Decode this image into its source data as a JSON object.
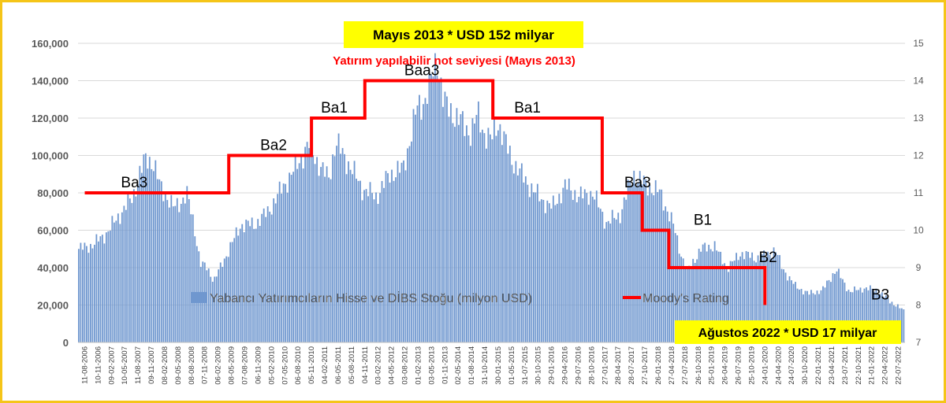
{
  "chart_data": {
    "type": "bar",
    "y_axis_left": {
      "ylim": [
        0,
        160000
      ],
      "ticks": [
        "0",
        "20,000",
        "40,000",
        "60,000",
        "80,000",
        "100,000",
        "120,000",
        "140,000",
        "160,000"
      ]
    },
    "y_axis_right": {
      "ylim": [
        7,
        15
      ],
      "ticks": [
        "7",
        "8",
        "9",
        "10",
        "11",
        "12",
        "13",
        "14",
        "15"
      ]
    },
    "x_tick_labels": [
      "11-08-2006",
      "10-11-2006",
      "09-02-2007",
      "10-05-2007",
      "11-08-2007",
      "09-11-2007",
      "08-02-2008",
      "09-05-2008",
      "08-08-2008",
      "07-11-2008",
      "06-02-2009",
      "08-05-2009",
      "07-08-2009",
      "06-11-2009",
      "05-02-2010",
      "07-05-2010",
      "06-08-2010",
      "05-11-2010",
      "04-02-2011",
      "06-05-2011",
      "05-08-2011",
      "04-11-2011",
      "03-02-2012",
      "04-05-2012",
      "03-08-2012",
      "01-02-2013",
      "03-05-2013",
      "01-11-2013",
      "02-05-2014",
      "01-08-2014",
      "31-10-2014",
      "30-01-2015",
      "01-05-2015",
      "31-07-2015",
      "30-10-2015",
      "29-01-2016",
      "29-04-2016",
      "29-07-2016",
      "28-10-2016",
      "27-01-2017",
      "28-04-2017",
      "28-07-2017",
      "27-10-2017",
      "26-01-2018",
      "27-04-2018",
      "27-07-2018",
      "26-10-2018",
      "25-01-2019",
      "26-04-2019",
      "26-07-2019",
      "25-10-2019",
      "24-01-2020",
      "24-04-2020",
      "24-07-2020",
      "30-10-2020",
      "22-01-2021",
      "23-04-2021",
      "23-07-2021",
      "22-10-2021",
      "21-01-2022",
      "22-04-2022",
      "22-07-2022"
    ],
    "series": [
      {
        "name": "Yabancı Yatırımcıların Hisse ve DİBS Stoğu (milyon USD)",
        "kind": "bar",
        "color": "#6f97cf",
        "anchors": [
          [
            0,
            50000
          ],
          [
            1,
            52000
          ],
          [
            2,
            58000
          ],
          [
            3,
            68000
          ],
          [
            4,
            78000
          ],
          [
            4.5,
            90000
          ],
          [
            5,
            99000
          ],
          [
            5.5,
            96000
          ],
          [
            6,
            84000
          ],
          [
            7,
            72000
          ],
          [
            7.5,
            75000
          ],
          [
            8,
            79000
          ],
          [
            8.5,
            64000
          ],
          [
            9,
            42000
          ],
          [
            9.5,
            40000
          ],
          [
            10,
            33000
          ],
          [
            11,
            48000
          ],
          [
            12,
            63000
          ],
          [
            13,
            63000
          ],
          [
            14,
            70000
          ],
          [
            15,
            82000
          ],
          [
            16,
            93000
          ],
          [
            17,
            106000
          ],
          [
            18,
            92000
          ],
          [
            18.5,
            88000
          ],
          [
            19,
            107000
          ],
          [
            20,
            95000
          ],
          [
            21,
            82000
          ],
          [
            22,
            78000
          ],
          [
            23,
            90000
          ],
          [
            24,
            93000
          ],
          [
            25,
            125000
          ],
          [
            25.6,
            130000
          ],
          [
            26,
            139000
          ],
          [
            26.5,
            152000
          ],
          [
            27,
            128000
          ],
          [
            28,
            120000
          ],
          [
            29,
            112000
          ],
          [
            29.5,
            122000
          ],
          [
            30,
            112000
          ],
          [
            30.5,
            108000
          ],
          [
            31,
            118000
          ],
          [
            32,
            98000
          ],
          [
            33,
            87000
          ],
          [
            34,
            78000
          ],
          [
            35,
            72000
          ],
          [
            36,
            84000
          ],
          [
            37,
            78000
          ],
          [
            38,
            80000
          ],
          [
            39,
            64000
          ],
          [
            40,
            68000
          ],
          [
            41,
            90000
          ],
          [
            42,
            84000
          ],
          [
            43,
            80000
          ],
          [
            44,
            62000
          ],
          [
            44.5,
            48000
          ],
          [
            45,
            38000
          ],
          [
            46,
            50000
          ],
          [
            47,
            52000
          ],
          [
            47.5,
            45000
          ],
          [
            48,
            40000
          ],
          [
            49,
            48000
          ],
          [
            50,
            45000
          ],
          [
            51,
            47000
          ],
          [
            51.5,
            50000
          ],
          [
            52,
            40000
          ],
          [
            53,
            30000
          ],
          [
            54,
            26000
          ],
          [
            55,
            28000
          ],
          [
            56,
            39000
          ],
          [
            57,
            27000
          ],
          [
            58,
            29000
          ],
          [
            59,
            28000
          ],
          [
            60,
            22000
          ],
          [
            61,
            17000
          ]
        ]
      },
      {
        "name": "Moody's Rating",
        "kind": "step",
        "color": "#ff0000",
        "steps": [
          [
            0,
            11
          ],
          [
            10.8,
            11
          ],
          [
            10.8,
            12
          ],
          [
            17,
            12
          ],
          [
            17,
            13
          ],
          [
            21,
            13
          ],
          [
            21,
            14
          ],
          [
            30.6,
            14
          ],
          [
            30.6,
            13
          ],
          [
            38.8,
            13
          ],
          [
            38.8,
            11
          ],
          [
            41.8,
            11
          ],
          [
            41.8,
            10
          ],
          [
            43.8,
            10
          ],
          [
            43.8,
            9
          ],
          [
            51,
            9
          ],
          [
            51,
            8
          ]
        ]
      }
    ],
    "rating_labels": [
      {
        "text": "Ba3",
        "x": 2.5,
        "y": 11
      },
      {
        "text": "Ba2",
        "x": 8.7,
        "y": 12
      },
      {
        "text": "Ba1",
        "x": 11.4,
        "y": 13
      },
      {
        "text": "Baa3",
        "x": 15.3,
        "y": 14
      },
      {
        "text": "Ba1",
        "x": 20,
        "y": 13
      },
      {
        "text": "Ba3",
        "x": 24.9,
        "y": 11
      },
      {
        "text": "B1",
        "x": 27.8,
        "y": 10
      },
      {
        "text": "B2",
        "x": 30.7,
        "y": 9
      },
      {
        "text": "B3",
        "x": 35.7,
        "y": 8
      }
    ],
    "legend_placement": "bottom-inside",
    "annotations": {
      "top_box": "Mayıs 2013  *  USD 152 milyar",
      "red_note": "Yatırım yapılabilir not seviyesi (Mayıs 2013)",
      "bottom_box": "Ağustos 2022  * USD 17 milyar"
    },
    "box_color": "#ffff00",
    "frame_color": "#f5c518"
  }
}
